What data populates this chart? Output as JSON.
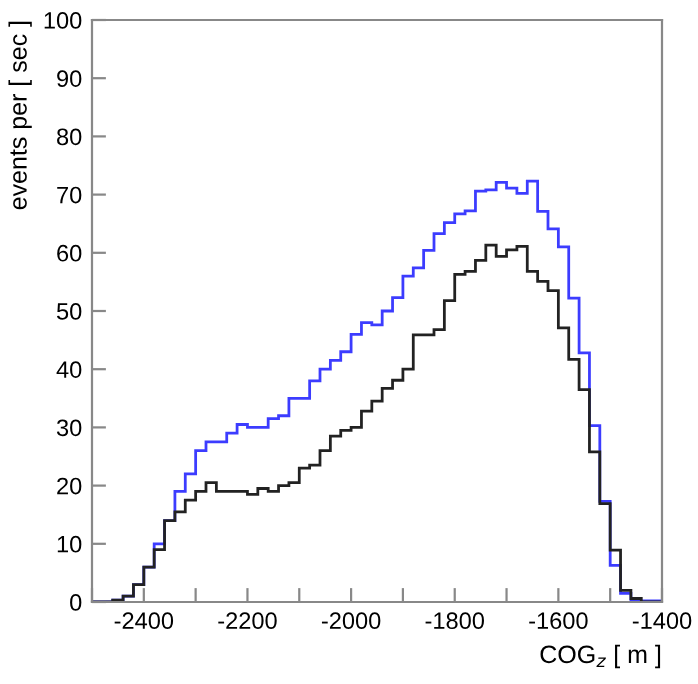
{
  "chart_data": {
    "type": "histogram",
    "xlabel": "COG$_{z}$ [ m ]",
    "ylabel": "events per [ sec ]",
    "bins": [
      -2500,
      -2480,
      -2460,
      -2440,
      -2420,
      -2400,
      -2380,
      -2360,
      -2340,
      -2320,
      -2300,
      -2280,
      -2260,
      -2240,
      -2220,
      -2200,
      -2180,
      -2160,
      -2140,
      -2120,
      -2100,
      -2080,
      -2060,
      -2040,
      -2020,
      -2000,
      -1980,
      -1960,
      -1940,
      -1920,
      -1900,
      -1880,
      -1860,
      -1840,
      -1820,
      -1800,
      -1780,
      -1760,
      -1740,
      -1720,
      -1700,
      -1680,
      -1660,
      -1640,
      -1620,
      -1600,
      -1580,
      -1560,
      -1540,
      -1520,
      -1500,
      -1480,
      -1460,
      -1440,
      -1420,
      -1400
    ],
    "series": [
      {
        "color": "#3c3cff",
        "values": [
          0,
          0,
          0.3,
          1,
          3,
          6,
          10,
          14,
          19,
          22,
          26,
          27.5,
          27.5,
          29,
          30.5,
          30,
          30,
          31.5,
          32,
          35,
          35,
          38,
          40,
          41.5,
          43,
          46,
          48,
          47.6,
          50,
          52.3,
          56,
          57.4,
          60.4,
          63.3,
          65.2,
          66.7,
          67.2,
          70.6,
          70.8,
          72.1,
          71.1,
          70.2,
          72.3,
          67.1,
          64.1,
          61,
          52.2,
          42.8,
          30.3,
          17.3,
          6.3,
          1.5,
          0.2,
          0.2,
          0.2
        ]
      },
      {
        "color": "#222222",
        "values": [
          0,
          0,
          0.3,
          1,
          3,
          6,
          9,
          14,
          15.5,
          17.5,
          19,
          20.5,
          19,
          19,
          19,
          18.5,
          19.5,
          19,
          20,
          20.5,
          23,
          23.5,
          26,
          28.5,
          29.5,
          30,
          32.8,
          34.5,
          36.7,
          38.1,
          40,
          45.9,
          45.9,
          46.8,
          51.8,
          56.3,
          56.8,
          58.7,
          61.3,
          59.4,
          60.5,
          61.1,
          56.8,
          55.1,
          53.5,
          47.1,
          41.7,
          36.5,
          25.8,
          16.9,
          8.9,
          2,
          0.6,
          0,
          0
        ]
      }
    ],
    "xlim": [
      -2500,
      -1400
    ],
    "xticks": [
      {
        "value": -2500,
        "label": null
      },
      -2400,
      {
        "value": -2300,
        "label": null
      },
      -2200,
      {
        "value": -2100,
        "label": null
      },
      -2000,
      {
        "value": -1900,
        "label": null
      },
      -1800,
      {
        "value": -1700,
        "label": null
      },
      -1600,
      {
        "value": -1500,
        "label": null
      },
      -1400
    ],
    "ylim": [
      0,
      100
    ],
    "yticks": [
      0,
      10,
      20,
      30,
      40,
      50,
      60,
      70,
      80,
      90,
      100
    ],
    "grid": false,
    "legend": false
  }
}
